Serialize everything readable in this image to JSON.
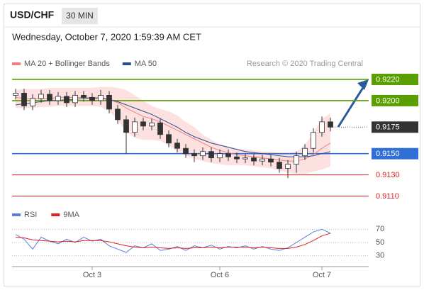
{
  "header": {
    "symbol": "USD/CHF",
    "interval": "30 MIN",
    "date": "Wednesday, October 7, 2020 1:59:39 AM CET"
  },
  "chart_data": [
    {
      "type": "candlestick",
      "legend": [
        {
          "name": "MA 20 + Bollinger Bands",
          "color": "#f08080"
        },
        {
          "name": "MA 50",
          "color": "#2a4d8f"
        }
      ],
      "credit": "Research © 2020 Trading Central",
      "categories": [
        null,
        null,
        null,
        null,
        null,
        null,
        null,
        null,
        null,
        "Oct 3",
        null,
        null,
        null,
        null,
        null,
        null,
        null,
        null,
        null,
        null,
        null,
        null,
        null,
        null,
        "Oct 6",
        null,
        null,
        null,
        null,
        null,
        null,
        null,
        null,
        null,
        null,
        null,
        "Oct 7",
        null
      ],
      "open": [
        0.9205,
        0.9207,
        0.9195,
        0.9202,
        0.9206,
        0.92,
        0.9204,
        0.9198,
        0.9205,
        0.9203,
        0.92,
        0.9205,
        0.9192,
        0.9182,
        0.917,
        0.918,
        0.9176,
        0.9179,
        0.9168,
        0.916,
        0.9155,
        0.915,
        0.9148,
        0.9152,
        0.9146,
        0.915,
        0.9147,
        0.9145,
        0.9146,
        0.9143,
        0.9145,
        0.9142,
        0.9136,
        0.914,
        0.9148,
        0.9155,
        0.917,
        0.918
      ],
      "high": [
        0.9211,
        0.9211,
        0.9206,
        0.921,
        0.921,
        0.9208,
        0.9208,
        0.9209,
        0.9209,
        0.9207,
        0.921,
        0.9209,
        0.9196,
        0.9186,
        0.9184,
        0.9184,
        0.9183,
        0.9183,
        0.9172,
        0.9164,
        0.9159,
        0.9154,
        0.9156,
        0.9156,
        0.9154,
        0.9154,
        0.9151,
        0.915,
        0.915,
        0.9149,
        0.9149,
        0.9146,
        0.9144,
        0.9152,
        0.9159,
        0.9174,
        0.9185,
        0.9184
      ],
      "low": [
        0.9201,
        0.9191,
        0.9191,
        0.9198,
        0.9196,
        0.9196,
        0.9194,
        0.9194,
        0.9199,
        0.9196,
        0.9196,
        0.9188,
        0.9178,
        0.915,
        0.9166,
        0.9172,
        0.9172,
        0.9164,
        0.9156,
        0.9151,
        0.9146,
        0.9142,
        0.9144,
        0.9142,
        0.9142,
        0.9143,
        0.9141,
        0.9141,
        0.9139,
        0.9139,
        0.9138,
        0.9132,
        0.9127,
        0.9132,
        0.9144,
        0.9151,
        0.9166,
        0.9171
      ],
      "close": [
        0.9207,
        0.9195,
        0.9202,
        0.9206,
        0.92,
        0.9204,
        0.9198,
        0.9205,
        0.9203,
        0.92,
        0.9205,
        0.9192,
        0.9182,
        0.917,
        0.918,
        0.9176,
        0.9179,
        0.9168,
        0.916,
        0.9155,
        0.915,
        0.9148,
        0.9152,
        0.9146,
        0.915,
        0.9147,
        0.9145,
        0.9146,
        0.9143,
        0.9145,
        0.9142,
        0.9136,
        0.914,
        0.9148,
        0.9155,
        0.917,
        0.918,
        0.9175
      ],
      "up_color": "#ffffff",
      "down_color": "#333333",
      "wick_color": "#333333",
      "bb_upper": [
        0.921,
        0.9211,
        0.9211,
        0.9211,
        0.9212,
        0.9212,
        0.9212,
        0.9212,
        0.9212,
        0.9212,
        0.9213,
        0.9213,
        0.9212,
        0.921,
        0.9205,
        0.92,
        0.9195,
        0.9192,
        0.919,
        0.9186,
        0.918,
        0.9175,
        0.9168,
        0.9163,
        0.9159,
        0.9157,
        0.9155,
        0.9154,
        0.9153,
        0.9152,
        0.9152,
        0.9151,
        0.9151,
        0.9152,
        0.9158,
        0.917,
        0.9183,
        0.9188
      ],
      "bb_lower": [
        0.9193,
        0.9193,
        0.9193,
        0.9194,
        0.9194,
        0.9195,
        0.9195,
        0.9195,
        0.9195,
        0.9195,
        0.9194,
        0.919,
        0.9182,
        0.917,
        0.9165,
        0.9163,
        0.9163,
        0.9162,
        0.9158,
        0.9152,
        0.9148,
        0.9145,
        0.9143,
        0.9141,
        0.914,
        0.9139,
        0.9139,
        0.9139,
        0.9138,
        0.9137,
        0.9136,
        0.9134,
        0.9132,
        0.9131,
        0.9131,
        0.9133,
        0.9135,
        0.9138
      ],
      "bb_color": "#fde0e0",
      "ma20": [
        0.9203,
        0.9202,
        0.9202,
        0.9202,
        0.9202,
        0.9203,
        0.9203,
        0.9203,
        0.9203,
        0.9203,
        0.9203,
        0.9201,
        0.9198,
        0.9193,
        0.9189,
        0.9185,
        0.9183,
        0.918,
        0.9176,
        0.9172,
        0.9168,
        0.9164,
        0.916,
        0.9156,
        0.9153,
        0.9151,
        0.9149,
        0.9148,
        0.9147,
        0.9146,
        0.9145,
        0.9144,
        0.9143,
        0.9143,
        0.9145,
        0.9149,
        0.9155,
        0.916
      ],
      "ma50": [
        0.9196,
        0.9197,
        0.9198,
        0.9199,
        0.92,
        0.92,
        0.9201,
        0.9201,
        0.9202,
        0.9202,
        0.9202,
        0.9201,
        0.9199,
        0.9196,
        0.9193,
        0.919,
        0.9187,
        0.9183,
        0.9179,
        0.9175,
        0.917,
        0.9166,
        0.9163,
        0.916,
        0.9158,
        0.9156,
        0.9154,
        0.9152,
        0.9151,
        0.915,
        0.9149,
        0.9148,
        0.9147,
        0.9147,
        0.9147,
        0.9148,
        0.915,
        0.9152
      ],
      "ylim": [
        0.9101,
        0.9228
      ],
      "levels": [
        {
          "value": 0.922,
          "label": "0.9220",
          "color": "#5a9e00",
          "style": "box"
        },
        {
          "value": 0.92,
          "label": "0.9200",
          "color": "#5a9e00",
          "style": "box"
        },
        {
          "value": 0.9175,
          "label": "0.9175",
          "color": "#333333",
          "style": "current"
        },
        {
          "value": 0.915,
          "label": "0.9150",
          "color": "#2f6fd6",
          "style": "box"
        },
        {
          "value": 0.913,
          "label": "0.9130",
          "color": "#e02020",
          "style": "text"
        },
        {
          "value": 0.911,
          "label": "0.9110",
          "color": "#e02020",
          "style": "text"
        }
      ]
    },
    {
      "type": "line",
      "series": [
        {
          "name": "RSI",
          "color": "#5b7fd6",
          "values": [
            62,
            55,
            40,
            58,
            52,
            48,
            55,
            50,
            58,
            52,
            55,
            45,
            40,
            35,
            45,
            42,
            48,
            38,
            40,
            44,
            38,
            45,
            42,
            46,
            40,
            44,
            42,
            45,
            40,
            44,
            40,
            38,
            42,
            50,
            58,
            66,
            70,
            64
          ]
        },
        {
          "name": "9MA",
          "color": "#e02020",
          "values": [
            58,
            57,
            54,
            53,
            52,
            51,
            52,
            51,
            53,
            53,
            53,
            51,
            48,
            45,
            43,
            42,
            43,
            42,
            41,
            42,
            41,
            42,
            42,
            43,
            42,
            43,
            43,
            43,
            42,
            43,
            42,
            41,
            41,
            43,
            47,
            53,
            60,
            64
          ]
        }
      ],
      "ylim": [
        20,
        80
      ],
      "yticks": [
        70,
        50,
        30
      ]
    }
  ]
}
